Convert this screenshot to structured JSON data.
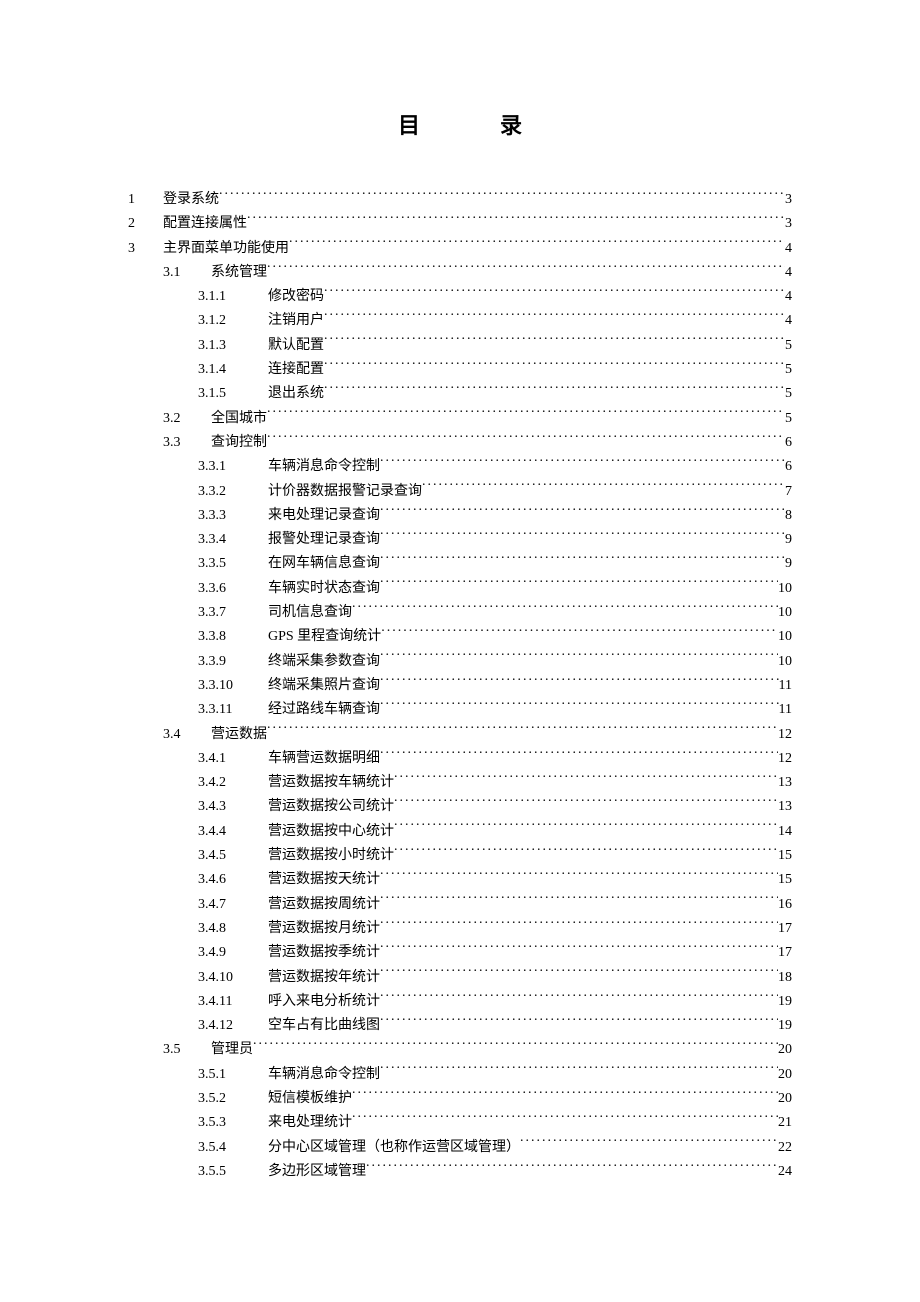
{
  "title_left": "目",
  "title_right": "录",
  "entries": [
    {
      "level": 1,
      "num": "1",
      "label": "登录系统",
      "page": "3"
    },
    {
      "level": 1,
      "num": "2",
      "label": "配置连接属性",
      "page": "3"
    },
    {
      "level": 1,
      "num": "3",
      "label": "主界面菜单功能使用",
      "page": "4"
    },
    {
      "level": 2,
      "num": "3.1",
      "label": "系统管理",
      "page": "4"
    },
    {
      "level": 3,
      "num": "3.1.1",
      "label": "修改密码",
      "page": "4"
    },
    {
      "level": 3,
      "num": "3.1.2",
      "label": "注销用户",
      "page": "4"
    },
    {
      "level": 3,
      "num": "3.1.3",
      "label": "默认配置",
      "page": "5"
    },
    {
      "level": 3,
      "num": "3.1.4",
      "label": "连接配置",
      "page": "5"
    },
    {
      "level": 3,
      "num": "3.1.5",
      "label": "退出系统",
      "page": "5"
    },
    {
      "level": 2,
      "num": "3.2",
      "label": "全国城市",
      "page": "5"
    },
    {
      "level": 2,
      "num": "3.3",
      "label": "查询控制",
      "page": "6"
    },
    {
      "level": 3,
      "num": "3.3.1",
      "label": "车辆消息命令控制",
      "page": "6"
    },
    {
      "level": 3,
      "num": "3.3.2",
      "label": "计价器数据报警记录查询",
      "page": "7"
    },
    {
      "level": 3,
      "num": "3.3.3",
      "label": "来电处理记录查询",
      "page": "8"
    },
    {
      "level": 3,
      "num": "3.3.4",
      "label": "报警处理记录查询",
      "page": "9"
    },
    {
      "level": 3,
      "num": "3.3.5",
      "label": "在网车辆信息查询",
      "page": "9"
    },
    {
      "level": 3,
      "num": "3.3.6",
      "label": "车辆实时状态查询",
      "page": "10"
    },
    {
      "level": 3,
      "num": "3.3.7",
      "label": "司机信息查询",
      "page": "10"
    },
    {
      "level": 3,
      "num": "3.3.8",
      "label": "GPS 里程查询统计",
      "page": "10"
    },
    {
      "level": 3,
      "num": "3.3.9",
      "label": "终端采集参数查询",
      "page": "10"
    },
    {
      "level": 3,
      "num": "3.3.10",
      "label": "终端采集照片查询",
      "page": "11"
    },
    {
      "level": 3,
      "num": "3.3.11",
      "label": "经过路线车辆查询",
      "page": "11"
    },
    {
      "level": 2,
      "num": "3.4",
      "label": "营运数据",
      "page": "12"
    },
    {
      "level": 3,
      "num": "3.4.1",
      "label": "车辆营运数据明细",
      "page": "12"
    },
    {
      "level": 3,
      "num": "3.4.2",
      "label": "营运数据按车辆统计",
      "page": "13"
    },
    {
      "level": 3,
      "num": "3.4.3",
      "label": "营运数据按公司统计",
      "page": "13"
    },
    {
      "level": 3,
      "num": "3.4.4",
      "label": "营运数据按中心统计",
      "page": "14"
    },
    {
      "level": 3,
      "num": "3.4.5",
      "label": "营运数据按小时统计",
      "page": "15"
    },
    {
      "level": 3,
      "num": "3.4.6",
      "label": "营运数据按天统计",
      "page": "15"
    },
    {
      "level": 3,
      "num": "3.4.7",
      "label": "营运数据按周统计",
      "page": "16"
    },
    {
      "level": 3,
      "num": "3.4.8",
      "label": "营运数据按月统计",
      "page": "17"
    },
    {
      "level": 3,
      "num": "3.4.9",
      "label": "营运数据按季统计",
      "page": "17"
    },
    {
      "level": 3,
      "num": "3.4.10",
      "label": "营运数据按年统计",
      "page": "18"
    },
    {
      "level": 3,
      "num": "3.4.11",
      "label": "呼入来电分析统计",
      "page": "19"
    },
    {
      "level": 3,
      "num": "3.4.12",
      "label": "空车占有比曲线图",
      "page": "19"
    },
    {
      "level": 2,
      "num": "3.5",
      "label": "管理员",
      "page": "20"
    },
    {
      "level": 3,
      "num": "3.5.1",
      "label": "车辆消息命令控制",
      "page": "20"
    },
    {
      "level": 3,
      "num": "3.5.2",
      "label": "短信模板维护",
      "page": "20"
    },
    {
      "level": 3,
      "num": "3.5.3",
      "label": "来电处理统计",
      "page": "21"
    },
    {
      "level": 3,
      "num": "3.5.4",
      "label": "分中心区域管理（也称作运营区域管理）",
      "page": "22"
    },
    {
      "level": 3,
      "num": "3.5.5",
      "label": "多边形区域管理",
      "page": "24"
    }
  ]
}
